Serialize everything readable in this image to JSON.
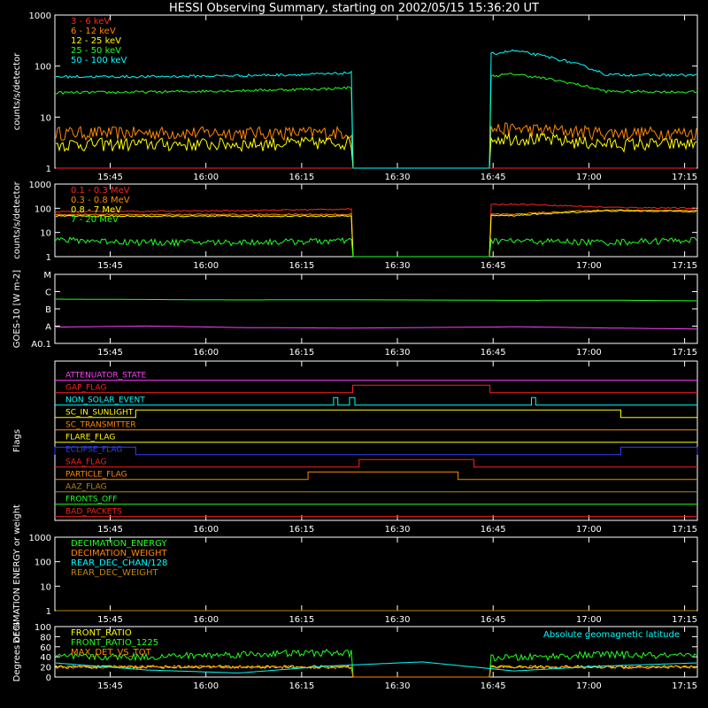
{
  "title": "HESSI Observing Summary, starting on 2002/05/15 15:36:20 UT",
  "time_axis": {
    "start": "15:36:20",
    "end": "17:17:00",
    "ticks": [
      "15:45",
      "16:00",
      "16:15",
      "16:30",
      "16:45",
      "17:00",
      "17:15"
    ]
  },
  "data_gap": {
    "start": "16:23:00",
    "end": "16:44:30"
  },
  "chart_data": [
    {
      "id": "panel1",
      "type": "line",
      "ylabel": "counts/s/detector",
      "y_scale": "log",
      "ylim": [
        1,
        1000
      ],
      "y_ticks": [
        "1",
        "10",
        "100",
        "1000"
      ],
      "legend": "top-left",
      "series": [
        {
          "name": "3 - 6 keV",
          "color": "#ff2020",
          "values": [
            1,
            1,
            1,
            1,
            1,
            1,
            1,
            1
          ]
        },
        {
          "name": "6 - 12 keV",
          "color": "#ff8800",
          "values": [
            5,
            5,
            5,
            5,
            5.5,
            6,
            5,
            5
          ]
        },
        {
          "name": "12 - 25 keV",
          "color": "#ffff00",
          "values": [
            3,
            3,
            3,
            3.2,
            3.5,
            4,
            3,
            3
          ]
        },
        {
          "name": "25 - 50 keV",
          "color": "#20ff20",
          "values": [
            30,
            31,
            33,
            36,
            45,
            70,
            32,
            31
          ]
        },
        {
          "name": "50 - 100 keV",
          "color": "#00ffff",
          "values": [
            62,
            62,
            65,
            70,
            90,
            200,
            68,
            66
          ]
        }
      ]
    },
    {
      "id": "panel2",
      "type": "line",
      "ylabel": "counts/s/detector",
      "y_scale": "log",
      "ylim": [
        1,
        1000
      ],
      "y_ticks": [
        "1",
        "10",
        "100",
        "1000"
      ],
      "legend": "top-left",
      "series": [
        {
          "name": "0.1 - 0.3 MeV",
          "color": "#ff2020",
          "values": [
            72,
            75,
            80,
            90,
            110,
            150,
            110,
            100
          ]
        },
        {
          "name": "0.3 - 0.8 MeV",
          "color": "#ff8800",
          "values": [
            55,
            55,
            55,
            56,
            56,
            57,
            85,
            80
          ]
        },
        {
          "name": "0.8 - 7 MeV",
          "color": "#ffff00",
          "values": [
            48,
            47,
            47,
            48,
            48,
            50,
            78,
            75
          ]
        },
        {
          "name": "7 - 20 MeV",
          "color": "#20ff20",
          "values": [
            5,
            4,
            4,
            4.5,
            4.5,
            4.5,
            4,
            5
          ]
        }
      ]
    },
    {
      "id": "panel3",
      "type": "line",
      "ylabel": "GOES-10 [W m-2]",
      "y_scale": "log",
      "y_ticks": [
        "A0.1",
        "A",
        "B",
        "C",
        "M"
      ],
      "series": [
        {
          "name": "",
          "color": "#20ff20",
          "values": [
            1.6e-06,
            1.5e-06,
            1.4e-06,
            1.45e-06,
            1.4e-06,
            1.3e-06,
            1.35e-06,
            1.2e-06
          ]
        },
        {
          "name": "",
          "color": "#ff40ff",
          "values": [
            1.5e-08,
            1.8e-08,
            1.4e-08,
            1.3e-08,
            1.2e-08,
            1.6e-08,
            1.3e-08,
            1.1e-08
          ]
        }
      ]
    },
    {
      "id": "panel4",
      "type": "line",
      "ylabel": "Flags",
      "flags": [
        {
          "name": "ATTENUATOR_STATE",
          "color": "#ff40ff",
          "on": []
        },
        {
          "name": "GAP_FLAG",
          "color": "#ff2020",
          "on": [
            [
              "16:23:00",
              "16:44:30"
            ]
          ]
        },
        {
          "name": "NON_SOLAR_EVENT",
          "color": "#00ffff",
          "on": [
            [
              "16:20:00",
              "16:20:40"
            ],
            [
              "16:22:30",
              "16:23:20"
            ],
            [
              "16:51:00",
              "16:51:40"
            ]
          ]
        },
        {
          "name": "SC_IN_SUNLIGHT",
          "color": "#ffff00",
          "on": [
            [
              "15:49:00",
              "17:05:00"
            ]
          ]
        },
        {
          "name": "SC_TRANSMITTER",
          "color": "#ff8800",
          "on": []
        },
        {
          "name": "FLARE_FLAG",
          "color": "#ffff00",
          "on": []
        },
        {
          "name": "ECLIPSE_FLAG",
          "color": "#3040ff",
          "on": [
            [
              "15:36:20",
              "15:49:00"
            ],
            [
              "17:05:00",
              "17:17:00"
            ]
          ]
        },
        {
          "name": "SAA_FLAG",
          "color": "#ff2020",
          "on": [
            [
              "16:24:00",
              "16:42:00"
            ]
          ]
        },
        {
          "name": "PARTICLE_FLAG",
          "color": "#ff8800",
          "on": [
            [
              "16:16:00",
              "16:39:30"
            ]
          ]
        },
        {
          "name": "AAZ_FLAG",
          "color": "#b8860b",
          "on": []
        },
        {
          "name": "FRONTS_OFF",
          "color": "#20ff20",
          "on": []
        },
        {
          "name": "BAD_PACKETS",
          "color": "#ff2020",
          "on": []
        }
      ]
    },
    {
      "id": "panel5",
      "type": "line",
      "ylabel": "DECIMATION ENERGY or weight",
      "y_scale": "log",
      "ylim": [
        1,
        1000
      ],
      "y_ticks": [
        "1",
        "10",
        "100",
        "1000"
      ],
      "legend": "top-left",
      "series": [
        {
          "name": "DECIMATION_ENERGY",
          "color": "#20ff20",
          "values": [
            0,
            0,
            0,
            0,
            0,
            0,
            0,
            0
          ]
        },
        {
          "name": "DECIMATION_WEIGHT",
          "color": "#ff8800",
          "values": [
            0,
            0,
            0,
            0,
            0,
            0,
            0,
            0
          ]
        },
        {
          "name": "REAR_DEC_CHAN/128",
          "color": "#00ffff",
          "values": [
            0,
            0,
            0,
            0,
            0,
            0,
            0,
            0
          ]
        },
        {
          "name": "REAR_DEC_WEIGHT",
          "color": "#b8860b",
          "values": [
            0,
            0,
            0,
            0,
            0,
            0,
            0,
            0
          ]
        }
      ]
    },
    {
      "id": "panel6",
      "type": "line",
      "ylabel": "Degrees or %",
      "ylim": [
        0,
        100
      ],
      "y_ticks": [
        "0",
        "20",
        "40",
        "60",
        "80",
        "100"
      ],
      "legend": "top-left",
      "series": [
        {
          "name": "FRONT_RATIO",
          "color": "#ffff00",
          "values": [
            20,
            20,
            20,
            20,
            20,
            20,
            20,
            20
          ]
        },
        {
          "name": "FRONT_RATIO_1225",
          "color": "#20ff20",
          "values": [
            40,
            40,
            45,
            48,
            42,
            38,
            45,
            40
          ]
        },
        {
          "name": "MAX_DET_VS_TOT",
          "color": "#ff8800",
          "values": [
            20,
            21,
            20,
            19,
            21,
            20,
            19,
            20
          ]
        },
        {
          "name": "Absolute geomagnetic latitude",
          "color": "#00ffff",
          "values": [
            28,
            14,
            8,
            22,
            30,
            12,
            22,
            28
          ]
        }
      ]
    }
  ]
}
